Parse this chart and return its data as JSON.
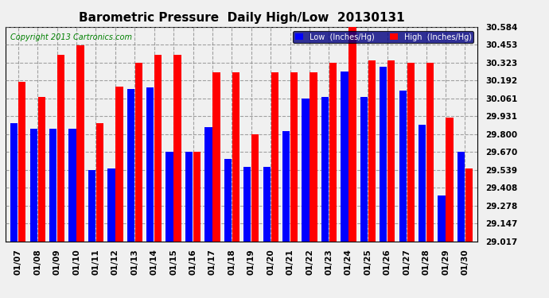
{
  "title": "Barometric Pressure  Daily High/Low  20130131",
  "copyright": "Copyright 2013 Cartronics.com",
  "dates": [
    "01/07",
    "01/08",
    "01/09",
    "01/10",
    "01/11",
    "01/12",
    "01/13",
    "01/14",
    "01/15",
    "01/16",
    "01/17",
    "01/18",
    "01/19",
    "01/20",
    "01/21",
    "01/22",
    "01/23",
    "01/24",
    "01/25",
    "01/26",
    "01/27",
    "01/28",
    "01/29",
    "01/30"
  ],
  "low": [
    29.88,
    29.84,
    29.84,
    29.84,
    29.54,
    29.55,
    30.13,
    30.14,
    29.67,
    29.67,
    29.85,
    29.62,
    29.56,
    29.56,
    29.82,
    30.06,
    30.07,
    30.26,
    30.07,
    30.29,
    30.12,
    29.87,
    29.35,
    29.67
  ],
  "high": [
    30.18,
    30.07,
    30.38,
    30.45,
    29.88,
    30.15,
    30.32,
    30.38,
    30.38,
    29.67,
    30.25,
    30.25,
    29.8,
    30.25,
    30.25,
    30.25,
    30.32,
    30.58,
    30.34,
    30.34,
    30.32,
    30.32,
    29.92,
    29.55
  ],
  "low_color": "#0000ff",
  "high_color": "#ff0000",
  "bg_color": "#f0f0f0",
  "ylim_min": 29.017,
  "ylim_max": 30.584,
  "yticks": [
    29.017,
    29.147,
    29.278,
    29.408,
    29.539,
    29.67,
    29.8,
    29.931,
    30.061,
    30.192,
    30.323,
    30.453,
    30.584
  ],
  "legend_low_label": "Low  (Inches/Hg)",
  "legend_high_label": "High  (Inches/Hg)",
  "title_fontsize": 11,
  "copyright_fontsize": 7
}
